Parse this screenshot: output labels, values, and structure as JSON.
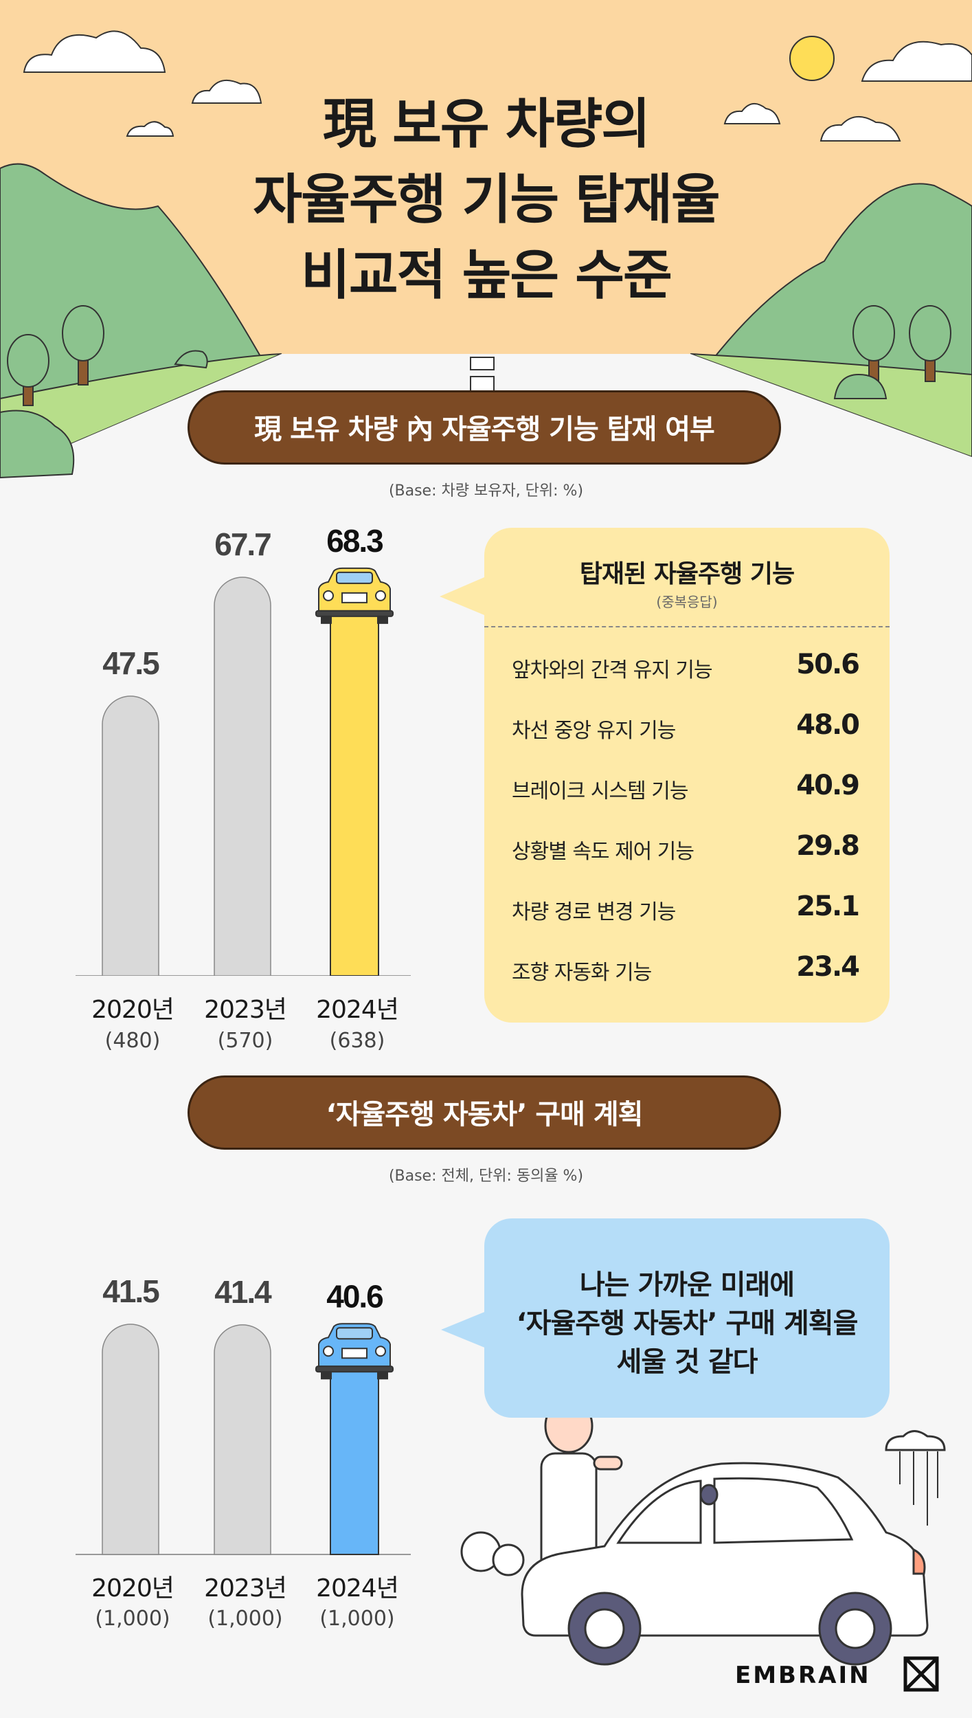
{
  "title": {
    "line1": "現 보유 차량의",
    "line2": "자율주행 기능 탑재율",
    "line3": "비교적 높은 수준"
  },
  "colors": {
    "sky": "#fcd7a1",
    "hill": "#8cc38e",
    "grass": "#b7de8a",
    "road": "#f6f6f6",
    "pill": "#7c4a24",
    "bar_gray": "#d9d9d9",
    "bar_yellow": "#fedd57",
    "bar_blue": "#67b6f8",
    "panel_yellow": "#feeaa8",
    "panel_blue": "#b5ddf8"
  },
  "section1": {
    "header": "現 보유 차량 內 자율주행 기능 탑재 여부",
    "base": "(Base: 차량 보유자, 단위: %)",
    "panel_title": "탑재된 자율주행 기능",
    "panel_sub": "(중복응답)",
    "features": [
      {
        "label": "앞차와의 간격 유지 기능",
        "value": "50.6"
      },
      {
        "label": "차선 중앙 유지 기능",
        "value": "48.0"
      },
      {
        "label": "브레이크 시스템 기능",
        "value": "40.9"
      },
      {
        "label": "상황별 속도 제어 기능",
        "value": "29.8"
      },
      {
        "label": "차량 경로 변경 기능",
        "value": "25.1"
      },
      {
        "label": "조향 자동화 기능",
        "value": "23.4"
      }
    ]
  },
  "section2": {
    "header": "‘자율주행 자동차’ 구매 계획",
    "base": "(Base: 전체, 단위: 동의율 %)",
    "bubble": [
      "나는 가까운 미래에",
      "‘자율주행 자동차’ 구매 계획을",
      "세울 것 같다"
    ]
  },
  "chart_data": [
    {
      "type": "bar",
      "categories": [
        "2020년",
        "2023년",
        "2024년"
      ],
      "bases": [
        "(480)",
        "(570)",
        "(638)"
      ],
      "values": [
        47.5,
        67.7,
        68.3
      ],
      "value_labels": [
        "47.5",
        "67.7",
        "68.3"
      ]
    },
    {
      "type": "bar",
      "categories": [
        "2020년",
        "2023년",
        "2024년"
      ],
      "bases": [
        "(1,000)",
        "(1,000)",
        "(1,000)"
      ],
      "values": [
        41.5,
        41.4,
        40.6
      ],
      "value_labels": [
        "41.5",
        "41.4",
        "40.6"
      ]
    }
  ],
  "footer": {
    "brand": "EMBRAIN"
  }
}
